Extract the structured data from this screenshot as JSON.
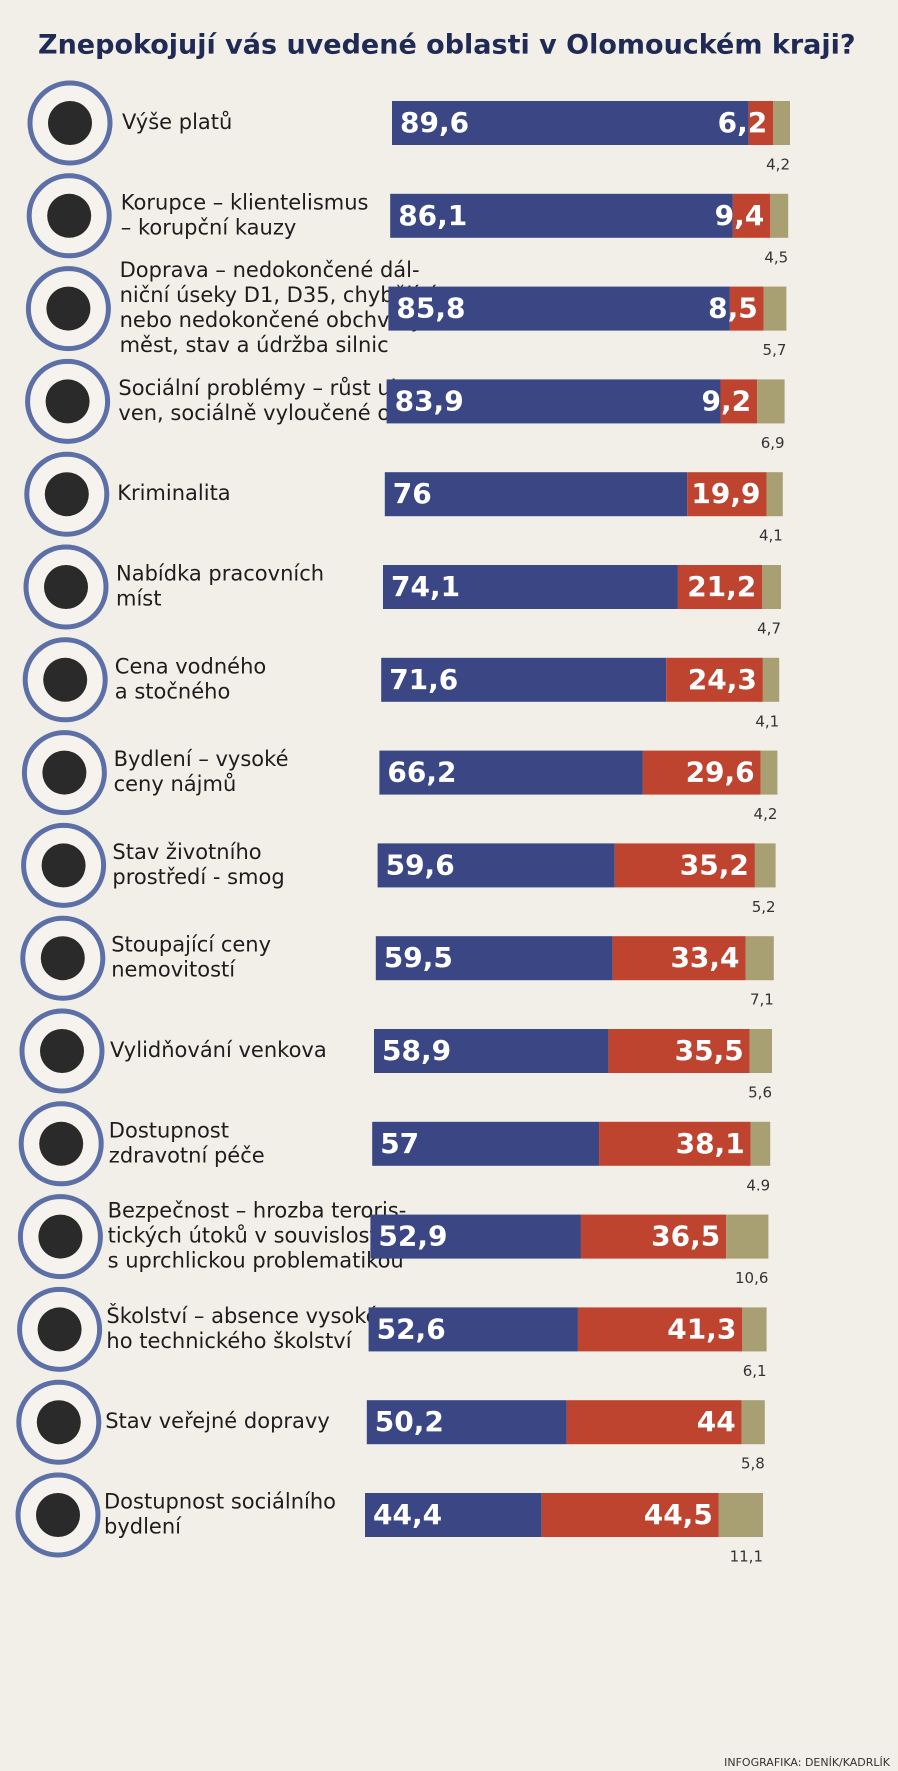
{
  "chart_data": {
    "type": "stacked_bar",
    "title": "Znepokojují vás uvedené oblasti v Olomouckém kraji?",
    "source": "INFOGRAFIKA: DENÍK/KADRLÍK",
    "categories": [
      [
        "Výše platů"
      ],
      [
        "Korupce – klientelismus",
        "– korupční kauzy"
      ],
      [
        "Doprava – nedokončené dál-",
        "niční úseky D1, D35, chybějící",
        "nebo nedokončené obchvaty",
        "měst, stav a údržba silnic"
      ],
      [
        "Sociální problémy – růst ubyto-",
        "ven, sociálně vyloučené oblasti"
      ],
      [
        "Kriminalita"
      ],
      [
        "Nabídka pracovních",
        "míst"
      ],
      [
        "Cena vodného",
        "a stočného"
      ],
      [
        "Bydlení – vysoké",
        "ceny nájmů"
      ],
      [
        "Stav životního",
        "prostředí - smog"
      ],
      [
        "Stoupající ceny",
        "nemovitostí"
      ],
      [
        "Vylidňování venkova"
      ],
      [
        "Dostupnost",
        "zdravotní péče"
      ],
      [
        "Bezpečnost – hrozba teroris-",
        "tických útoků v souvislosti",
        "s uprchlickou problematikou"
      ],
      [
        "Školství – absence vysoké-",
        "ho technického školství"
      ],
      [
        "Stav veřejné dopravy"
      ],
      [
        "Dostupnost sociálního",
        "bydlení"
      ]
    ],
    "series": [
      {
        "color": "#3a4784",
        "values": [
          89.6,
          86.1,
          85.8,
          83.9,
          76,
          74.1,
          71.6,
          66.2,
          59.6,
          59.5,
          58.9,
          57,
          52.9,
          52.6,
          50.2,
          44.4
        ],
        "value_labels": [
          "89,6",
          "86,1",
          "85,8",
          "83,9",
          "76",
          "74,1",
          "71,6",
          "66,2",
          "59,6",
          "59,5",
          "58,9",
          "57",
          "52,9",
          "52,6",
          "50,2",
          "44,4"
        ]
      },
      {
        "color": "#bf4430",
        "values": [
          6.2,
          9.4,
          8.5,
          9.2,
          19.9,
          21.2,
          24.3,
          29.6,
          35.2,
          33.4,
          35.5,
          38.1,
          36.5,
          41.3,
          44,
          44.5
        ],
        "value_labels": [
          "6,2",
          "9,4",
          "8,5",
          "9,2",
          "19,9",
          "21,2",
          "24,3",
          "29,6",
          "35,2",
          "33,4",
          "35,5",
          "38,1",
          "36,5",
          "41,3",
          "44",
          "44,5"
        ]
      },
      {
        "color": "#a89f72",
        "values": [
          4.2,
          4.5,
          5.7,
          6.9,
          4.1,
          4.7,
          4.1,
          4.2,
          5.2,
          7.1,
          5.6,
          4.9,
          10.6,
          6.1,
          5.8,
          11.1
        ],
        "value_labels": [
          "4,2",
          "4,5",
          "5,7",
          "6,9",
          "4,1",
          "4,7",
          "4,1",
          "4,2",
          "5,2",
          "7,1",
          "5,6",
          "4.9",
          "10,6",
          "6,1",
          "5,8",
          "11,1"
        ]
      }
    ],
    "xlim": [
      0,
      100
    ]
  }
}
